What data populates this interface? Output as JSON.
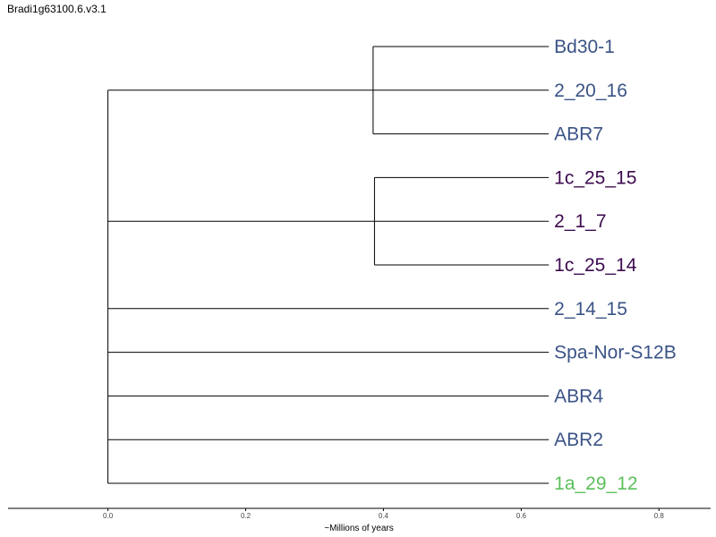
{
  "title": "Bradi1g63100.6.v3.1",
  "colors": {
    "group_blue": "#3a5386",
    "group_purple": "#3d0a4f",
    "group_green": "#5cc05c"
  },
  "tree": {
    "leaves": [
      {
        "label": "Bd30-1",
        "group": "group_blue"
      },
      {
        "label": "2_20_16",
        "group": "group_blue"
      },
      {
        "label": "ABR7",
        "group": "group_blue"
      },
      {
        "label": "1c_25_15",
        "group": "group_purple"
      },
      {
        "label": "2_1_7",
        "group": "group_purple"
      },
      {
        "label": "1c_25_14",
        "group": "group_purple"
      },
      {
        "label": "2_14_15",
        "group": "group_blue"
      },
      {
        "label": "Spa-Nor-S12B",
        "group": "group_blue"
      },
      {
        "label": "ABR4",
        "group": "group_blue"
      },
      {
        "label": "ABR2",
        "group": "group_blue"
      },
      {
        "label": "1a_29_12",
        "group": "group_green"
      }
    ],
    "clades": [
      {
        "node_age": 0.385,
        "members": [
          0,
          1,
          2
        ]
      },
      {
        "node_age": 0.387,
        "members": [
          3,
          4,
          5
        ]
      }
    ],
    "tip_age": 0.64
  },
  "axis": {
    "label": "~Millions of years",
    "ticks": [
      "0.0",
      "0.2",
      "0.4",
      "0.6",
      "0.8"
    ],
    "tick_values": [
      0.0,
      0.2,
      0.4,
      0.6,
      0.8
    ],
    "domain": [
      -0.145,
      0.875
    ]
  }
}
